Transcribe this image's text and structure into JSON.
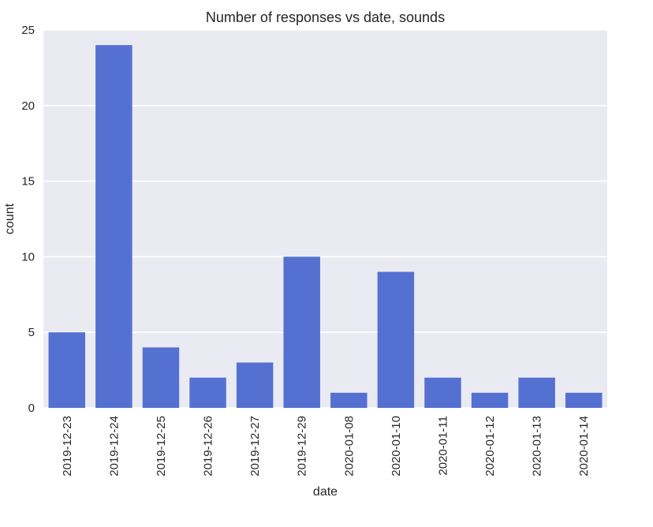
{
  "chart_data": {
    "type": "bar",
    "title": "Number of responses vs date, sounds",
    "xlabel": "date",
    "ylabel": "count",
    "categories": [
      "2019-12-23",
      "2019-12-24",
      "2019-12-25",
      "2019-12-26",
      "2019-12-27",
      "2019-12-29",
      "2020-01-08",
      "2020-01-10",
      "2020-01-11",
      "2020-01-12",
      "2020-01-13",
      "2020-01-14"
    ],
    "values": [
      5,
      24,
      4,
      2,
      3,
      10,
      1,
      9,
      2,
      1,
      2,
      1
    ],
    "ylim": [
      0,
      25
    ],
    "yticks": [
      0,
      5,
      10,
      15,
      20,
      25
    ],
    "grid": true,
    "bar_color": "#5471d2",
    "plot_background": "#eaeaf2",
    "grid_color": "#ffffff"
  }
}
